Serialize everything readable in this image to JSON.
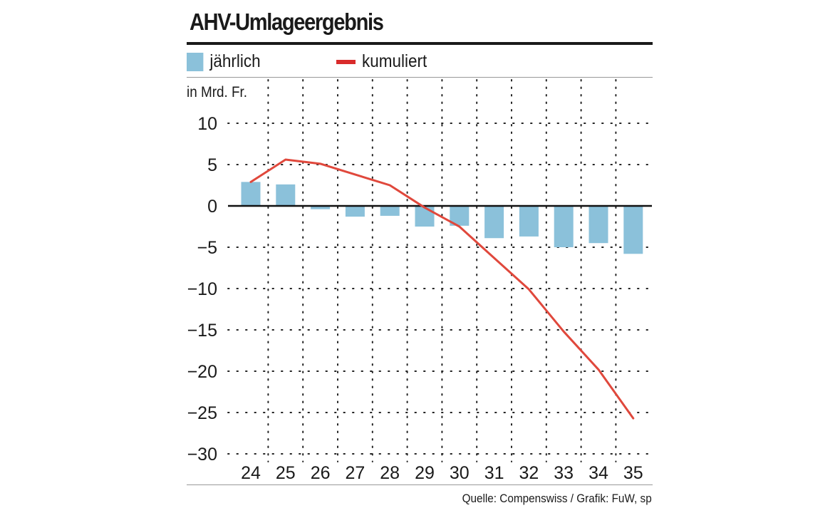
{
  "chart_data": {
    "type": "bar",
    "title": "AHV-Umlageergebnis",
    "ylabel": "in Mrd. Fr.",
    "categories": [
      "24",
      "25",
      "26",
      "27",
      "28",
      "29",
      "30",
      "31",
      "32",
      "33",
      "34",
      "35"
    ],
    "series": [
      {
        "name": "jährlich",
        "kind": "bar",
        "color": "#8bc1da",
        "values": [
          2.9,
          2.6,
          -0.4,
          -1.3,
          -1.2,
          -2.5,
          -2.4,
          -3.9,
          -3.7,
          -5.0,
          -4.5,
          -5.8
        ]
      },
      {
        "name": "kumuliert",
        "kind": "line",
        "color": "#e0483c",
        "values": [
          2.9,
          5.6,
          5.1,
          3.8,
          2.5,
          -0.2,
          -2.5,
          -6.3,
          -10.1,
          -15.2,
          -19.8,
          -25.7
        ]
      }
    ],
    "yticks": [
      10,
      5,
      0,
      -5,
      -10,
      -15,
      -20,
      -25,
      -30
    ],
    "ytick_labels": [
      "10",
      "5",
      "0",
      "−5",
      "−10",
      "−15",
      "−20",
      "−25",
      "−30"
    ],
    "ylim": [
      -30,
      10
    ],
    "grid": true,
    "legend_position": "top-left"
  },
  "legend": {
    "bar_label": "jährlich",
    "line_label": "kumuliert",
    "bar_color": "#8bc1da",
    "line_color": "#d92b2b"
  },
  "source": "Quelle: Compenswiss / Grafik: FuW, sp"
}
